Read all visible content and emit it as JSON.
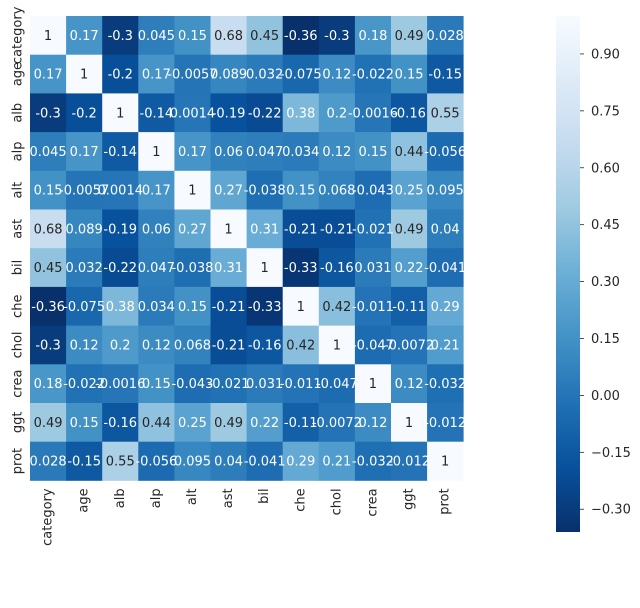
{
  "chart_data": {
    "type": "heatmap",
    "title": "",
    "xlabel": "",
    "ylabel": "",
    "row_labels": [
      "category",
      "age",
      "alb",
      "alp",
      "alt",
      "ast",
      "bil",
      "che",
      "chol",
      "crea",
      "ggt",
      "prot"
    ],
    "col_labels": [
      "category",
      "age",
      "alb",
      "alp",
      "alt",
      "ast",
      "bil",
      "che",
      "chol",
      "crea",
      "ggt",
      "prot"
    ],
    "values": [
      [
        1,
        0.17,
        -0.3,
        0.045,
        0.15,
        0.68,
        0.45,
        -0.36,
        -0.3,
        0.18,
        0.49,
        0.028
      ],
      [
        0.17,
        1,
        -0.2,
        0.17,
        -0.0057,
        0.089,
        0.032,
        -0.075,
        0.12,
        -0.022,
        0.15,
        -0.15
      ],
      [
        -0.3,
        -0.2,
        1,
        -0.14,
        0.0014,
        -0.19,
        -0.22,
        0.38,
        0.2,
        -0.0016,
        -0.16,
        0.55
      ],
      [
        0.045,
        0.17,
        -0.14,
        1,
        0.17,
        0.06,
        0.047,
        0.034,
        0.12,
        0.15,
        0.44,
        -0.056
      ],
      [
        0.15,
        -0.0057,
        0.0014,
        0.17,
        1,
        0.27,
        -0.038,
        0.15,
        0.068,
        -0.043,
        0.25,
        0.095
      ],
      [
        0.68,
        0.089,
        -0.19,
        0.06,
        0.27,
        1,
        0.31,
        -0.21,
        -0.21,
        -0.021,
        0.49,
        0.04
      ],
      [
        0.45,
        0.032,
        -0.22,
        0.047,
        -0.038,
        0.31,
        1,
        -0.33,
        -0.16,
        0.031,
        0.22,
        -0.041
      ],
      [
        -0.36,
        -0.075,
        0.38,
        0.034,
        0.15,
        -0.21,
        -0.33,
        1,
        0.42,
        -0.011,
        -0.11,
        0.29
      ],
      [
        -0.3,
        0.12,
        0.2,
        0.12,
        0.068,
        -0.21,
        -0.16,
        0.42,
        1,
        -0.047,
        -0.0072,
        0.21
      ],
      [
        0.18,
        -0.022,
        -0.0016,
        0.15,
        -0.043,
        -0.021,
        0.031,
        -0.011,
        -0.047,
        1,
        0.12,
        -0.032
      ],
      [
        0.49,
        0.15,
        -0.16,
        0.44,
        0.25,
        0.49,
        0.22,
        -0.11,
        -0.0072,
        0.12,
        1,
        -0.012
      ],
      [
        0.028,
        -0.15,
        0.55,
        -0.056,
        0.095,
        0.04,
        -0.041,
        0.29,
        0.21,
        -0.032,
        -0.012,
        1
      ]
    ],
    "colormap": "Blues_r",
    "vmin": -0.36,
    "vmax": 1,
    "colorbar_ticks": [
      0.9,
      0.75,
      0.6,
      0.45,
      0.3,
      0.15,
      0.0,
      -0.15,
      -0.3
    ],
    "colorbar_tick_labels": [
      "0.90",
      "0.75",
      "0.60",
      "0.45",
      "0.30",
      "0.15",
      "0.00",
      "−0.15",
      "−0.30"
    ],
    "annotate": true,
    "grid": false
  }
}
